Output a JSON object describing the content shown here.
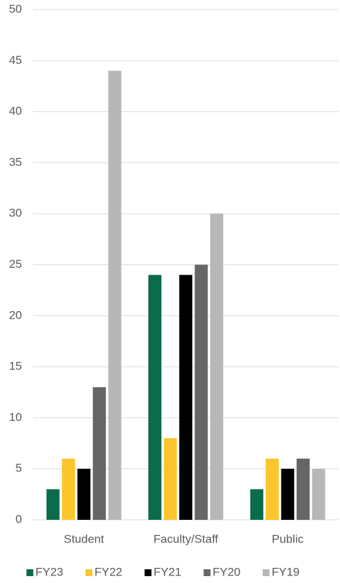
{
  "chart_data": {
    "type": "bar",
    "categories": [
      "Student",
      "Faculty/Staff",
      "Public"
    ],
    "series": [
      {
        "name": "FY23",
        "color": "#0b6b4a",
        "values": [
          3,
          24,
          3
        ]
      },
      {
        "name": "FY22",
        "color": "#fcc52c",
        "values": [
          6,
          8,
          6
        ]
      },
      {
        "name": "FY21",
        "color": "#000000",
        "values": [
          5,
          24,
          5
        ]
      },
      {
        "name": "FY20",
        "color": "#666666",
        "values": [
          13,
          25,
          6
        ]
      },
      {
        "name": "FY19",
        "color": "#b7b7b7",
        "values": [
          44,
          30,
          5
        ]
      }
    ],
    "ylim": [
      0,
      50
    ],
    "yticks": [
      0,
      5,
      10,
      15,
      20,
      25,
      30,
      35,
      40,
      45,
      50
    ],
    "grid": true,
    "legend": "bottom"
  }
}
